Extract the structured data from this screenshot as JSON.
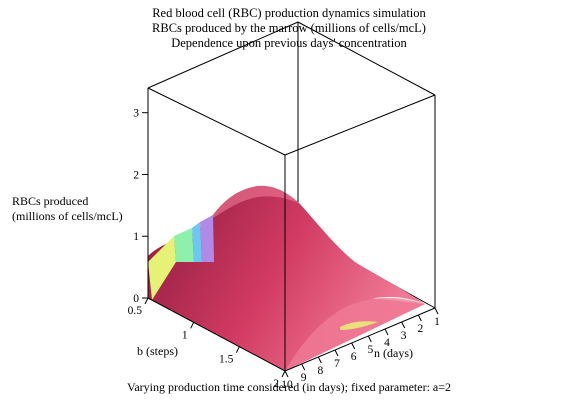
{
  "chart_data": {
    "type": "surface3d",
    "title": [
      "Red blood cell (RBC) production dynamics simulation",
      "RBCs produced by the marrow (millions of cells/mcL)",
      "Dependence upon previous days' concentration"
    ],
    "zlabel": [
      "RBCs produced",
      "(millions of cells/mcL)"
    ],
    "xlabel": "b (steps)",
    "ylabel": "n (days)",
    "caption": "Varying production time considered (in days); fixed parameter: a=2",
    "xlim": [
      0.5,
      2
    ],
    "ylim": [
      1,
      10
    ],
    "zlim": [
      0,
      3.4
    ],
    "x_ticks": [
      "0.5",
      "1",
      "1.5",
      "2"
    ],
    "y_ticks": [
      "1",
      "2",
      "3",
      "4",
      "5",
      "6",
      "7",
      "8",
      "9",
      "10"
    ],
    "z_ticks": [
      "0",
      "1",
      "2",
      "3"
    ],
    "grid": false,
    "box": "boxed",
    "colors": {
      "surface_main": "#d23a62",
      "surface_dark": "#8a1a3c",
      "surface_light": "#f07a96",
      "band_yellow": "#e6f276",
      "band_green": "#8ff0ac",
      "band_cyan": "#6cc8f0",
      "band_purple": "#b08ae6"
    },
    "sample_profile_b_0_5": {
      "n": [
        1,
        2,
        3,
        4,
        5,
        6,
        7,
        8,
        9,
        10
      ],
      "z": [
        0.0,
        0.1,
        0.3,
        0.7,
        1.2,
        1.8,
        2.2,
        2.35,
        2.2,
        1.1
      ]
    }
  }
}
